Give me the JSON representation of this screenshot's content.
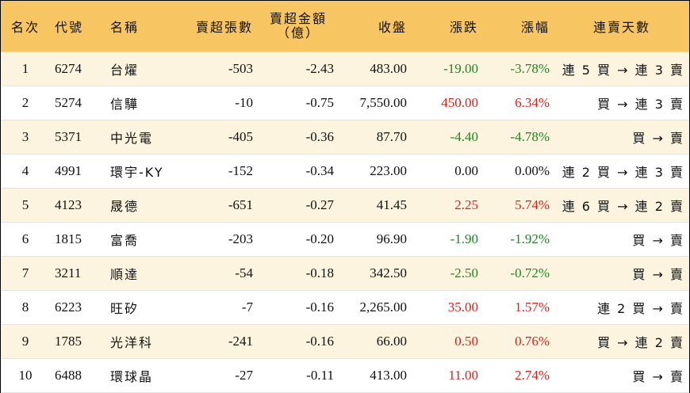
{
  "headers": {
    "rank": "名次",
    "code": "代號",
    "name": "名稱",
    "sell_lots": "賣超張數",
    "sell_amount_1": "賣超金額",
    "sell_amount_2": "（億）",
    "close": "收盤",
    "change": "漲跌",
    "pct": "漲幅",
    "streak": "連賣天數"
  },
  "rows": [
    {
      "rank": "1",
      "code": "6274",
      "name": "台燿",
      "lots": "-503",
      "amount": "-2.43",
      "close": "483.00",
      "change": "-19.00",
      "pct": "-3.78%",
      "dir": "down",
      "streak": "連 5 買 → 連 3 賣"
    },
    {
      "rank": "2",
      "code": "5274",
      "name": "信驊",
      "lots": "-10",
      "amount": "-0.75",
      "close": "7,550.00",
      "change": "450.00",
      "pct": "6.34%",
      "dir": "up",
      "streak": "買 → 連 3 賣"
    },
    {
      "rank": "3",
      "code": "5371",
      "name": "中光電",
      "lots": "-405",
      "amount": "-0.36",
      "close": "87.70",
      "change": "-4.40",
      "pct": "-4.78%",
      "dir": "down",
      "streak": "買 → 賣"
    },
    {
      "rank": "4",
      "code": "4991",
      "name": "環宇-KY",
      "lots": "-152",
      "amount": "-0.34",
      "close": "223.00",
      "change": "0.00",
      "pct": "0.00%",
      "dir": "flat",
      "streak": "連 2 買 → 連 3 賣"
    },
    {
      "rank": "5",
      "code": "4123",
      "name": "晟德",
      "lots": "-651",
      "amount": "-0.27",
      "close": "41.45",
      "change": "2.25",
      "pct": "5.74%",
      "dir": "up",
      "streak": "連 6 買 → 連 2 賣"
    },
    {
      "rank": "6",
      "code": "1815",
      "name": "富喬",
      "lots": "-203",
      "amount": "-0.20",
      "close": "96.90",
      "change": "-1.90",
      "pct": "-1.92%",
      "dir": "down",
      "streak": "買 → 賣"
    },
    {
      "rank": "7",
      "code": "3211",
      "name": "順達",
      "lots": "-54",
      "amount": "-0.18",
      "close": "342.50",
      "change": "-2.50",
      "pct": "-0.72%",
      "dir": "down",
      "streak": "買 → 賣"
    },
    {
      "rank": "8",
      "code": "6223",
      "name": "旺矽",
      "lots": "-7",
      "amount": "-0.16",
      "close": "2,265.00",
      "change": "35.00",
      "pct": "1.57%",
      "dir": "up",
      "streak": "連 2 買 → 賣"
    },
    {
      "rank": "9",
      "code": "1785",
      "name": "光洋科",
      "lots": "-241",
      "amount": "-0.16",
      "close": "66.00",
      "change": "0.50",
      "pct": "0.76%",
      "dir": "up",
      "streak": "買 → 連 2 賣"
    },
    {
      "rank": "10",
      "code": "6488",
      "name": "環球晶",
      "lots": "-27",
      "amount": "-0.11",
      "close": "413.00",
      "change": "11.00",
      "pct": "2.74%",
      "dir": "up",
      "streak": "買 → 賣"
    }
  ],
  "colors": {
    "header_bg": "#f7c663",
    "odd_row_bg": "#fdf4df",
    "up": "#e0201c",
    "down": "#1a8a21"
  }
}
